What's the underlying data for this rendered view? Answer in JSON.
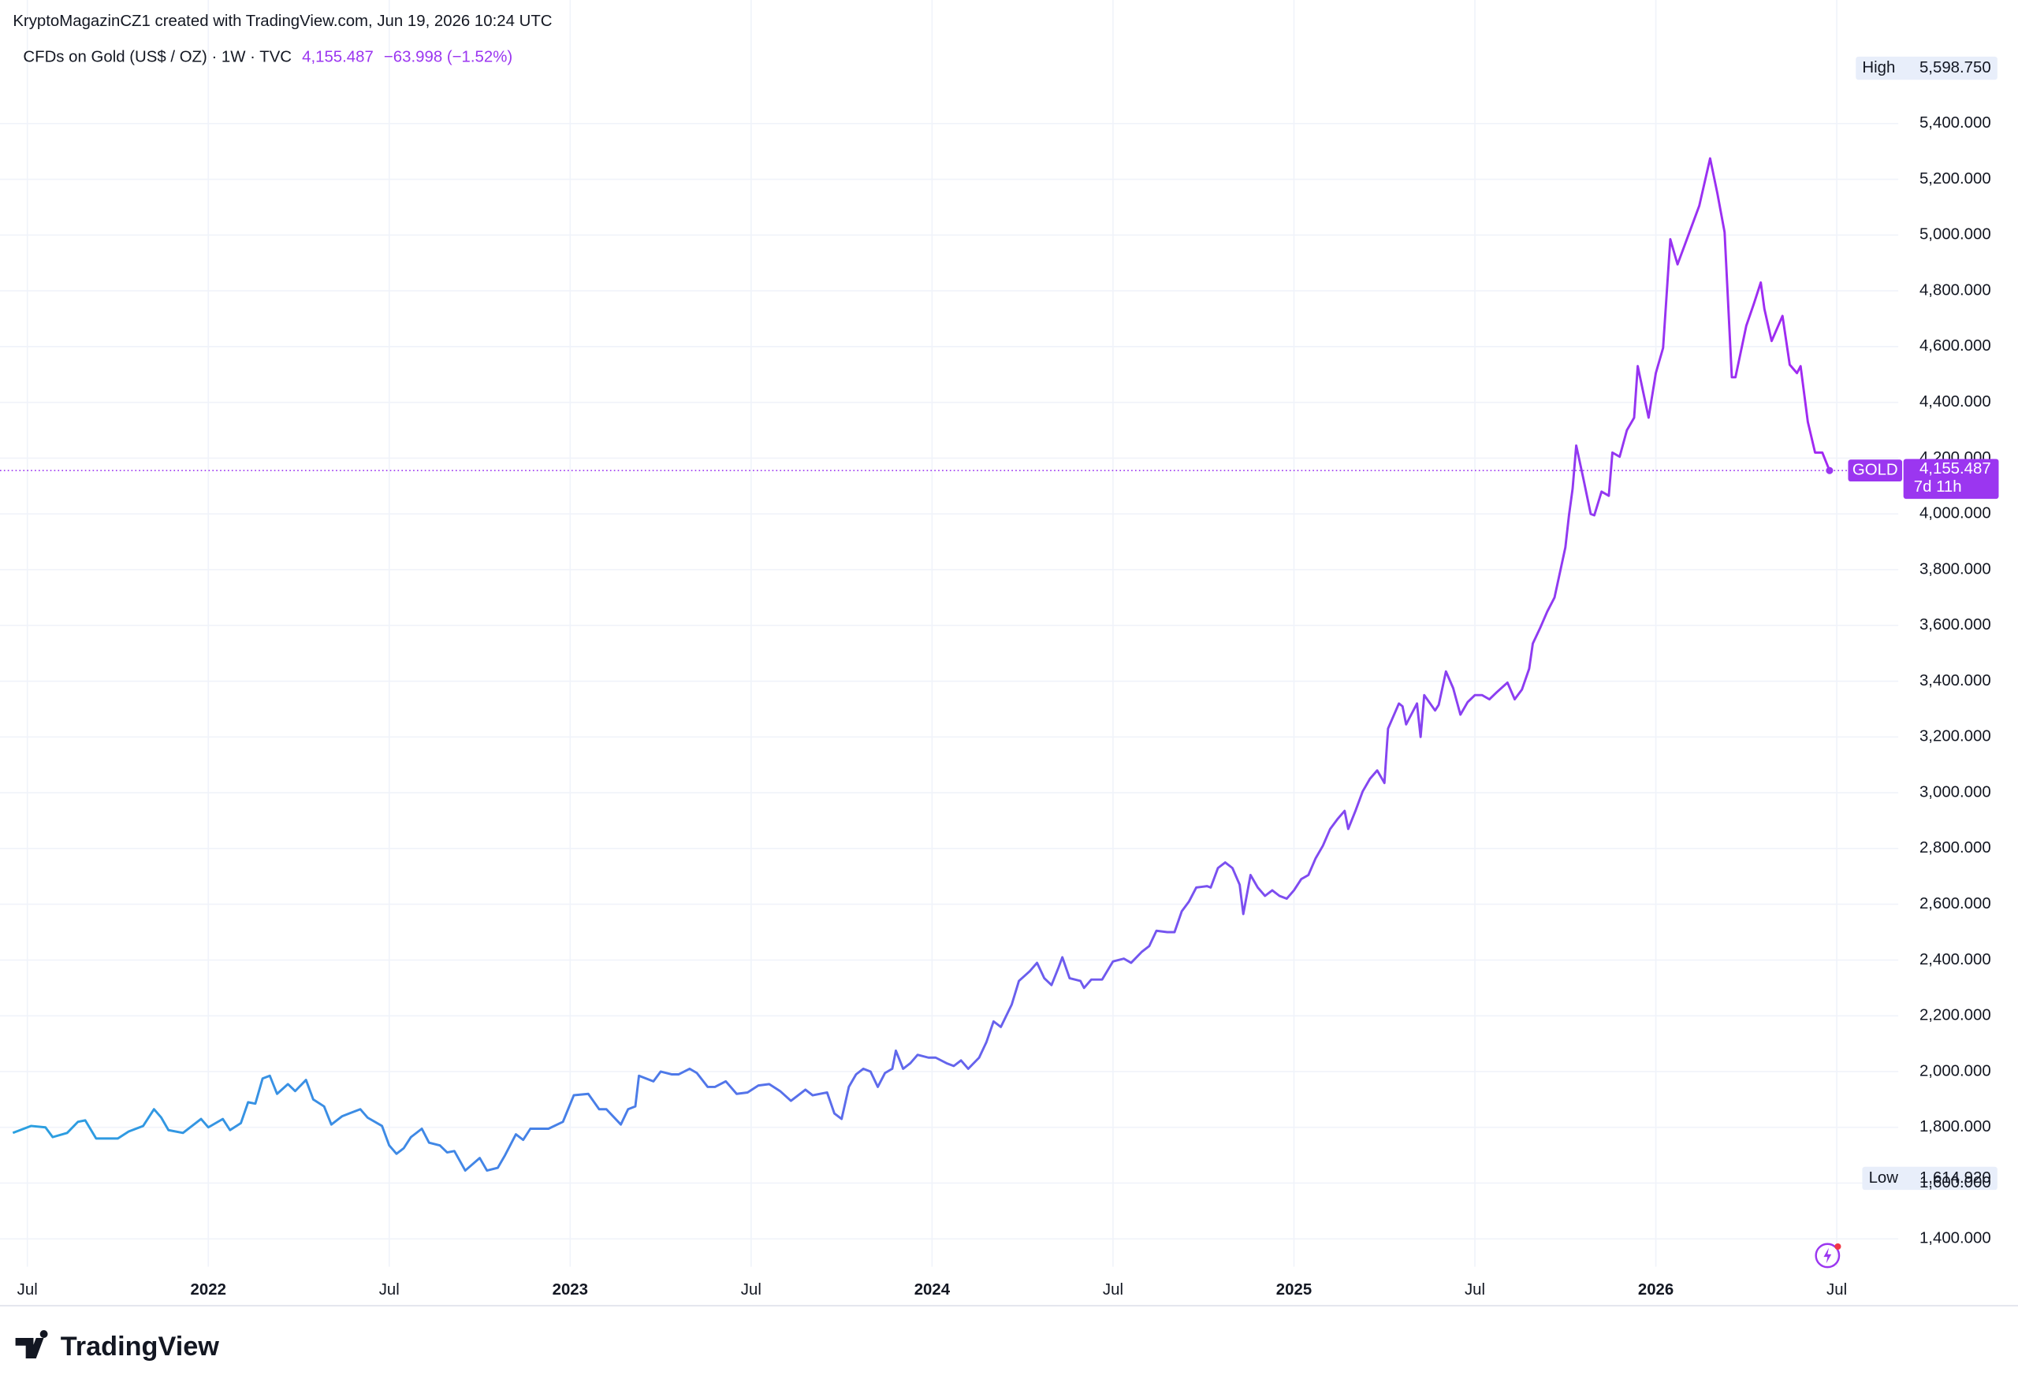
{
  "chart_data": {
    "type": "line",
    "header": "KryptoMagazinCZ1 created with TradingView.com, Jun 19, 2026 10:24 UTC",
    "title": "CFDs on Gold (US$ / OZ) · 1W · TVC",
    "last_price": {
      "value": 4155.487,
      "label": "4,155.487"
    },
    "change": {
      "value": -63.998,
      "label": "−63.998 (−1.52%)"
    },
    "high": {
      "label": "High",
      "value": 5598.75,
      "value_label": "5,598.750"
    },
    "low": {
      "label": "Low",
      "value": 1614.92,
      "value_label": "1,614.920"
    },
    "countdown": "7d 11h",
    "brand": "TradingView",
    "colors": [
      "#2aa0e0",
      "#4a7de8",
      "#7a50f0",
      "#a228f2"
    ],
    "xlim": [
      2021.46,
      2026.67
    ],
    "xticks": [
      {
        "value": 2021.5,
        "label": "Jul"
      },
      {
        "value": 2022,
        "label": "2022"
      },
      {
        "value": 2022.5,
        "label": "Jul"
      },
      {
        "value": 2023,
        "label": "2023"
      },
      {
        "value": 2023.5,
        "label": "Jul"
      },
      {
        "value": 2024,
        "label": "2024"
      },
      {
        "value": 2024.5,
        "label": "Jul"
      },
      {
        "value": 2025,
        "label": "2025"
      },
      {
        "value": 2025.5,
        "label": "Jul"
      },
      {
        "value": 2026,
        "label": "2026"
      },
      {
        "value": 2026.5,
        "label": "Jul"
      }
    ],
    "ylim": [
      1300,
      5700
    ],
    "yticks": [
      {
        "value": 1400,
        "label": "1,400.000"
      },
      {
        "value": 1600,
        "label": "1,600.000"
      },
      {
        "value": 1800,
        "label": "1,800.000"
      },
      {
        "value": 2000,
        "label": "2,000.000"
      },
      {
        "value": 2200,
        "label": "2,200.000"
      },
      {
        "value": 2400,
        "label": "2,400.000"
      },
      {
        "value": 2600,
        "label": "2,600.000"
      },
      {
        "value": 2800,
        "label": "2,800.000"
      },
      {
        "value": 3000,
        "label": "3,000.000"
      },
      {
        "value": 3200,
        "label": "3,200.000"
      },
      {
        "value": 3400,
        "label": "3,400.000"
      },
      {
        "value": 3600,
        "label": "3,600.000"
      },
      {
        "value": 3800,
        "label": "3,800.000"
      },
      {
        "value": 4000,
        "label": "4,000.000"
      },
      {
        "value": 4200,
        "label": "4,200.000"
      },
      {
        "value": 4400,
        "label": "4,400.000"
      },
      {
        "value": 4600,
        "label": "4,600.000"
      },
      {
        "value": 4800,
        "label": "4,800.000"
      },
      {
        "value": 5000,
        "label": "5,000.000"
      },
      {
        "value": 5200,
        "label": "5,200.000"
      },
      {
        "value": 5400,
        "label": "5,400.000"
      }
    ],
    "x": [
      2021.46,
      2021.51,
      2021.55,
      2021.57,
      2021.61,
      2021.64,
      2021.66,
      2021.69,
      2021.75,
      2021.78,
      2021.82,
      2021.85,
      2021.87,
      2021.89,
      2021.93,
      2021.98,
      2022.0,
      2022.04,
      2022.06,
      2022.09,
      2022.11,
      2022.13,
      2022.15,
      2022.17,
      2022.19,
      2022.22,
      2022.24,
      2022.27,
      2022.29,
      2022.32,
      2022.34,
      2022.37,
      2022.39,
      2022.42,
      2022.44,
      2022.48,
      2022.5,
      2022.52,
      2022.54,
      2022.56,
      2022.59,
      2022.61,
      2022.64,
      2022.66,
      2022.68,
      2022.71,
      2022.75,
      2022.77,
      2022.8,
      2022.82,
      2022.85,
      2022.87,
      2022.89,
      2022.94,
      2022.98,
      2023.01,
      2023.05,
      2023.08,
      2023.1,
      2023.14,
      2023.16,
      2023.18,
      2023.19,
      2023.23,
      2023.25,
      2023.28,
      2023.3,
      2023.33,
      2023.35,
      2023.38,
      2023.4,
      2023.43,
      2023.46,
      2023.49,
      2023.52,
      2023.55,
      2023.58,
      2023.61,
      2023.63,
      2023.65,
      2023.67,
      2023.71,
      2023.73,
      2023.75,
      2023.77,
      2023.79,
      2023.81,
      2023.83,
      2023.85,
      2023.87,
      2023.89,
      2023.9,
      2023.92,
      2023.94,
      2023.96,
      2023.99,
      2024.01,
      2024.04,
      2024.06,
      2024.08,
      2024.1,
      2024.13,
      2024.15,
      2024.17,
      2024.19,
      2024.22,
      2024.24,
      2024.27,
      2024.29,
      2024.31,
      2024.33,
      2024.35,
      2024.36,
      2024.38,
      2024.41,
      2024.42,
      2024.44,
      2024.47,
      2024.5,
      2024.53,
      2024.55,
      2024.58,
      2024.6,
      2024.62,
      2024.65,
      2024.67,
      2024.69,
      2024.71,
      2024.73,
      2024.76,
      2024.77,
      2024.79,
      2024.81,
      2024.83,
      2024.85,
      2024.86,
      2024.88,
      2024.9,
      2024.92,
      2024.94,
      2024.96,
      2024.98,
      2025.0,
      2025.02,
      2025.04,
      2025.06,
      2025.08,
      2025.1,
      2025.12,
      2025.14,
      2025.15,
      2025.17,
      2025.19,
      2025.21,
      2025.23,
      2025.25,
      2025.26,
      2025.29,
      2025.3,
      2025.31,
      2025.34,
      2025.35,
      2025.36,
      2025.39,
      2025.4,
      2025.42,
      2025.44,
      2025.46,
      2025.48,
      2025.5,
      2025.52,
      2025.54,
      2025.56,
      2025.59,
      2025.61,
      2025.63,
      2025.65,
      2025.66,
      2025.68,
      2025.7,
      2025.72,
      2025.73,
      2025.75,
      2025.76,
      2025.77,
      2025.78,
      2025.8,
      2025.82,
      2025.83,
      2025.85,
      2025.87,
      2025.88,
      2025.9,
      2025.92,
      2025.94,
      2025.95,
      2025.98,
      2026.0,
      2026.02,
      2026.04,
      2026.06,
      2026.08,
      2026.1,
      2026.12,
      2026.15,
      2026.17,
      2026.19,
      2026.21,
      2026.22,
      2026.25,
      2026.27,
      2026.29,
      2026.3,
      2026.32,
      2026.35,
      2026.37,
      2026.39,
      2026.4,
      2026.42,
      2026.44,
      2026.46,
      2026.48
    ],
    "series": [
      {
        "name": "GOLD",
        "values": [
          1780,
          1805,
          1800,
          1765,
          1780,
          1820,
          1825,
          1760,
          1760,
          1785,
          1805,
          1865,
          1835,
          1790,
          1780,
          1830,
          1800,
          1830,
          1790,
          1815,
          1890,
          1885,
          1975,
          1985,
          1920,
          1955,
          1930,
          1970,
          1900,
          1875,
          1810,
          1840,
          1850,
          1865,
          1835,
          1805,
          1735,
          1705,
          1725,
          1765,
          1795,
          1745,
          1735,
          1710,
          1715,
          1645,
          1690,
          1645,
          1655,
          1700,
          1775,
          1755,
          1795,
          1795,
          1820,
          1915,
          1920,
          1865,
          1865,
          1810,
          1865,
          1875,
          1985,
          1965,
          2000,
          1990,
          1990,
          2010,
          1995,
          1945,
          1945,
          1965,
          1920,
          1925,
          1950,
          1955,
          1930,
          1895,
          1915,
          1935,
          1915,
          1925,
          1850,
          1830,
          1945,
          1990,
          2010,
          2000,
          1945,
          1995,
          2010,
          2075,
          2010,
          2030,
          2060,
          2050,
          2050,
          2030,
          2020,
          2040,
          2010,
          2050,
          2105,
          2180,
          2160,
          2240,
          2325,
          2360,
          2390,
          2335,
          2310,
          2375,
          2410,
          2335,
          2325,
          2300,
          2330,
          2330,
          2395,
          2405,
          2390,
          2430,
          2450,
          2505,
          2500,
          2500,
          2575,
          2610,
          2660,
          2665,
          2660,
          2730,
          2750,
          2730,
          2670,
          2565,
          2705,
          2660,
          2630,
          2650,
          2630,
          2620,
          2650,
          2690,
          2705,
          2765,
          2810,
          2870,
          2905,
          2935,
          2870,
          2935,
          3005,
          3050,
          3080,
          3035,
          3230,
          3320,
          3310,
          3245,
          3320,
          3200,
          3350,
          3295,
          3315,
          3435,
          3375,
          3280,
          3325,
          3350,
          3350,
          3335,
          3360,
          3395,
          3335,
          3370,
          3445,
          3535,
          3590,
          3650,
          3700,
          3760,
          3880,
          3995,
          4090,
          4245,
          4125,
          4000,
          3995,
          4080,
          4065,
          4220,
          4205,
          4300,
          4345,
          4530,
          4345,
          4505,
          4595,
          4985,
          4895,
          4965,
          5035,
          5105,
          5275,
          5150,
          5010,
          4490,
          4490,
          4675,
          4750,
          4830,
          4735,
          4620,
          4710,
          4535,
          4505,
          4530,
          4330,
          4220,
          4220,
          4155.487
        ]
      }
    ],
    "grid": true
  }
}
